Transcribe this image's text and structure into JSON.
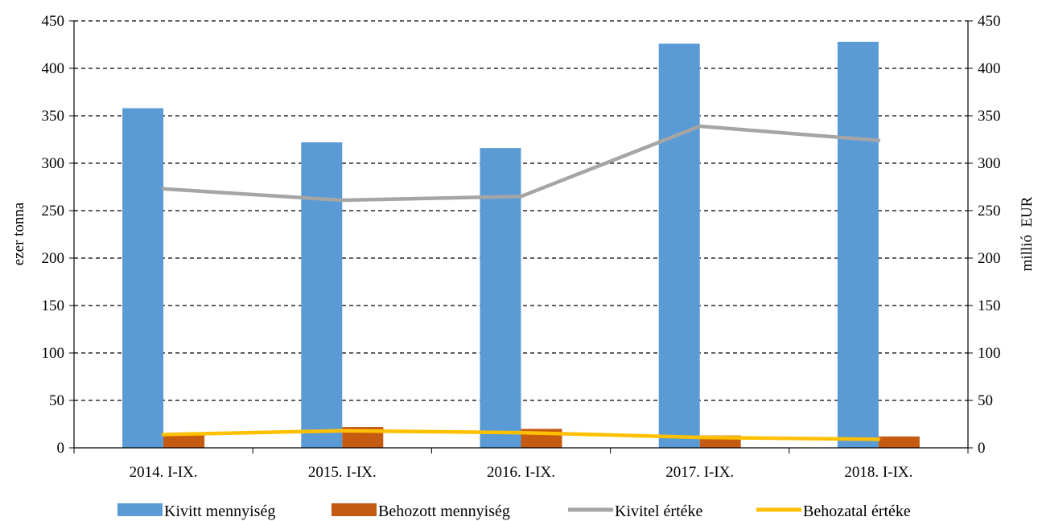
{
  "chart_data": {
    "type": "bar",
    "categories": [
      "2014. I-IX.",
      "2015. I-IX.",
      "2016. I-IX.",
      "2017. I-IX.",
      "2018. I-IX."
    ],
    "series": [
      {
        "name": "Kivitt mennyiség",
        "kind": "bar",
        "axis": "left",
        "color": "#5B9BD5",
        "values": [
          358,
          322,
          316,
          426,
          428
        ]
      },
      {
        "name": "Behozott mennyiség",
        "kind": "bar",
        "axis": "left",
        "color": "#C55A11",
        "values": [
          15,
          22,
          20,
          13,
          12
        ]
      },
      {
        "name": "Kivitel értéke",
        "kind": "line",
        "axis": "right",
        "color": "#A5A5A5",
        "values": [
          273,
          261,
          265,
          339,
          324
        ]
      },
      {
        "name": "Behozatal értéke",
        "kind": "line",
        "axis": "right",
        "color": "#FFC000",
        "values": [
          14,
          18,
          16,
          11,
          9
        ]
      }
    ],
    "ylabel": "ezer tonna",
    "y2label": "millió  EUR",
    "ylim": [
      0,
      450
    ],
    "y2lim": [
      0,
      450
    ],
    "yticks": [
      0,
      50,
      100,
      150,
      200,
      250,
      300,
      350,
      400,
      450
    ],
    "grid": "dashed horizontal",
    "legend": "bottom"
  }
}
